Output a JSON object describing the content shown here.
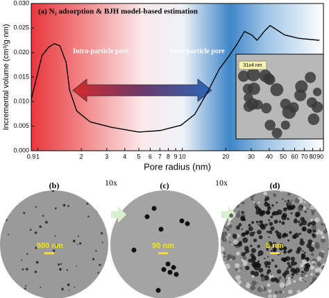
{
  "chart_data": {
    "type": "line",
    "title": "(a) N₂ adsorption & BJH model-based estimation",
    "x_label": "Pore radius (nm)",
    "y_label": "Incremental volume (cm³/g·nm)",
    "x_scale": "log",
    "annotations": [
      "Intra-particle pore",
      "Inter-particle pore"
    ],
    "inset_label": "31±4 nm",
    "x": [
      0.9,
      1.07,
      1.19,
      1.3,
      1.42,
      1.57,
      1.66,
      1.86,
      2.3,
      3.2,
      5.0,
      7.0,
      9.8,
      12.2,
      15.2,
      18,
      21.2,
      23.7,
      27,
      30.2,
      33,
      36.9,
      40.5,
      43.7,
      51,
      64,
      89
    ],
    "series": [
      {
        "color": "#000000",
        "values": [
          0.0105,
          0.0194,
          0.0211,
          0.0218,
          0.0214,
          0.018,
          0.0123,
          0.0081,
          0.0059,
          0.0048,
          0.0038,
          0.0041,
          0.0052,
          0.0074,
          0.0123,
          0.0166,
          0.0194,
          0.0215,
          0.0243,
          0.0236,
          0.0225,
          0.0243,
          0.0255,
          0.0249,
          0.0236,
          0.0229,
          0.0225
        ]
      }
    ],
    "xlim": [
      0.9,
      95
    ],
    "xticks": [
      0.9,
      1,
      2,
      3,
      4,
      5,
      6,
      7,
      8,
      9,
      10,
      20,
      30,
      40,
      50,
      60,
      70,
      80,
      90
    ],
    "ylim": [
      0,
      0.03
    ],
    "yticks": [
      {
        "value": 0,
        "label": "0.000"
      },
      0.005,
      {
        "value": 0.01,
        "label": "0.010"
      },
      0.015,
      {
        "value": 0.02,
        "label": "0.020"
      },
      0.025,
      {
        "value": 0.03,
        "label": "0.030"
      }
    ]
  },
  "panels": [
    {
      "label": "(b)",
      "scale_bar": "500 nm"
    },
    {
      "label": "(c)",
      "scale_bar": "50 nm"
    },
    {
      "label": "(d)",
      "scale_bar": "5 nm"
    }
  ],
  "magnifications": [
    "10x",
    "10x"
  ]
}
